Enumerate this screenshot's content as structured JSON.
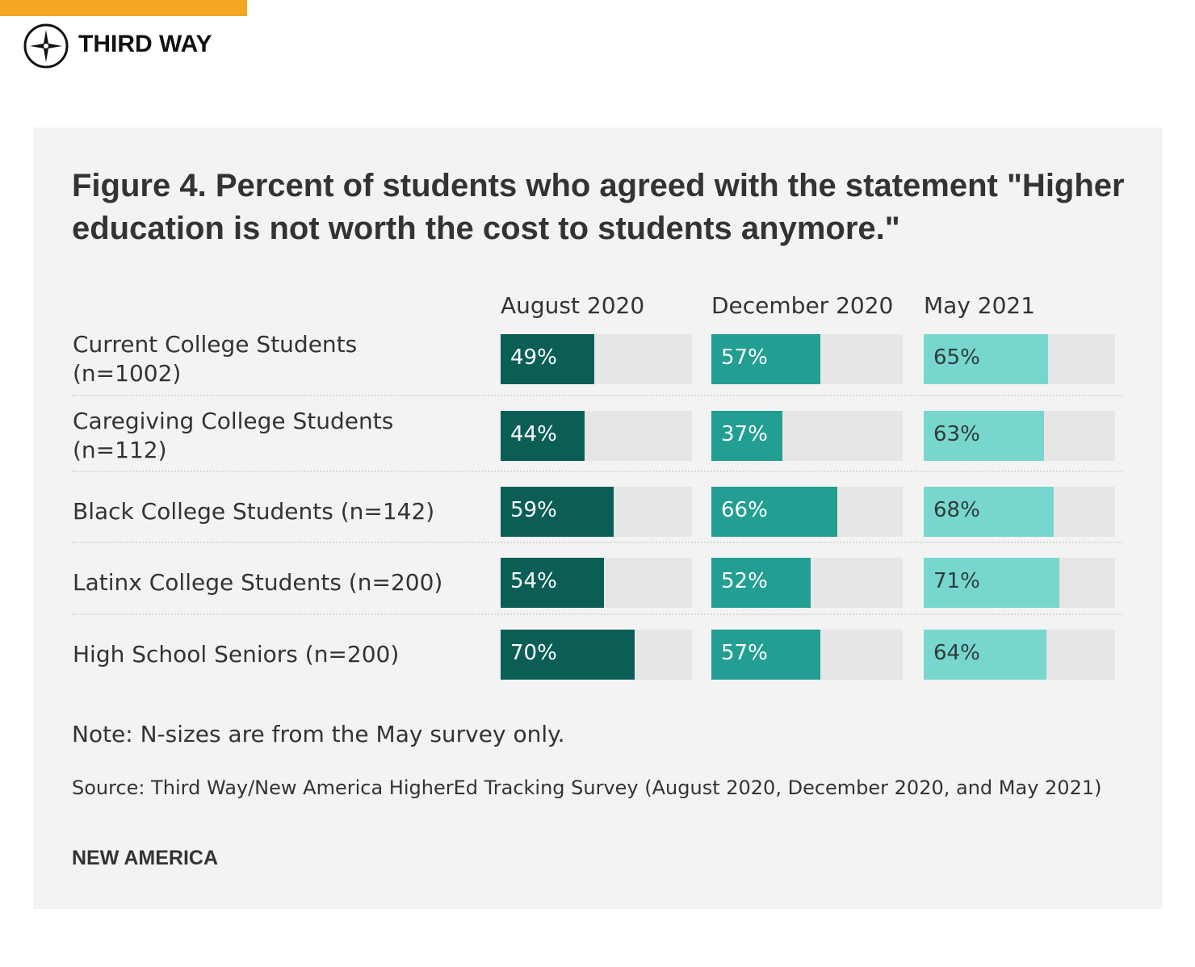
{
  "header": {
    "logo": "THIRD WAY"
  },
  "chart_data": {
    "type": "bar",
    "orientation": "horizontal",
    "title": "Figure 4. Percent of students who agreed with the statement \"Higher education is not worth the cost to students anymore.\"",
    "categories": [
      "Current College Students (n=1002)",
      "Caregiving College Students (n=112)",
      "Black College Students (n=142)",
      "Latinx College Students (n=200)",
      "High School Seniors (n=200)"
    ],
    "series": [
      {
        "name": "August 2020",
        "color": "#0b5e56",
        "values": [
          49,
          44,
          59,
          54,
          70
        ],
        "value_labels": [
          "49%",
          "44%",
          "59%",
          "54%",
          "70%"
        ]
      },
      {
        "name": "December 2020",
        "color": "#229e93",
        "values": [
          57,
          37,
          66,
          52,
          57
        ],
        "value_labels": [
          "57%",
          "37%",
          "66%",
          "52%",
          "57%"
        ]
      },
      {
        "name": "May 2021",
        "color": "#77d7cf",
        "values": [
          65,
          63,
          68,
          71,
          64
        ],
        "value_labels": [
          "65%",
          "63%",
          "68%",
          "71%",
          "64%"
        ]
      }
    ],
    "xlim": [
      0,
      100
    ],
    "note": "Note: N-sizes are from the May survey only.",
    "source": "Source: Third Way/New America HigherEd Tracking Survey (August 2020, December 2020, and May 2021)",
    "credit": "NEW AMERICA"
  }
}
